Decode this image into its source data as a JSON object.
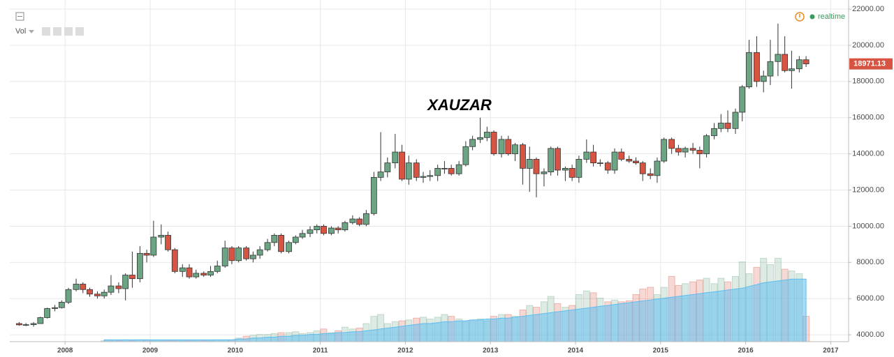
{
  "chart_data": {
    "type": "candlestick",
    "title": "XAUZAR",
    "ui": {
      "volume_label": "Vol",
      "status": "realtime"
    },
    "x": [
      2007.46,
      2007.54,
      2007.63,
      2007.71,
      2007.79,
      2007.88,
      2007.96,
      2008.04,
      2008.13,
      2008.21,
      2008.29,
      2008.38,
      2008.46,
      2008.54,
      2008.63,
      2008.71,
      2008.79,
      2008.88,
      2008.96,
      2009.04,
      2009.13,
      2009.21,
      2009.29,
      2009.38,
      2009.46,
      2009.54,
      2009.63,
      2009.71,
      2009.79,
      2009.88,
      2009.96,
      2010.04,
      2010.13,
      2010.21,
      2010.29,
      2010.38,
      2010.46,
      2010.54,
      2010.63,
      2010.71,
      2010.79,
      2010.88,
      2010.96,
      2011.04,
      2011.13,
      2011.21,
      2011.29,
      2011.38,
      2011.46,
      2011.54,
      2011.63,
      2011.71,
      2011.79,
      2011.88,
      2011.96,
      2012.04,
      2012.13,
      2012.21,
      2012.29,
      2012.38,
      2012.46,
      2012.54,
      2012.63,
      2012.71,
      2012.79,
      2012.88,
      2012.96,
      2013.04,
      2013.13,
      2013.21,
      2013.29,
      2013.38,
      2013.46,
      2013.54,
      2013.63,
      2013.71,
      2013.79,
      2013.88,
      2013.96,
      2014.04,
      2014.13,
      2014.21,
      2014.29,
      2014.38,
      2014.46,
      2014.54,
      2014.63,
      2014.71,
      2014.79,
      2014.88,
      2014.96,
      2015.04,
      2015.13,
      2015.21,
      2015.29,
      2015.38,
      2015.46,
      2015.54,
      2015.63,
      2015.71,
      2015.79,
      2015.88,
      2015.96,
      2016.04,
      2016.13,
      2016.21,
      2016.29,
      2016.38,
      2016.46,
      2016.54,
      2016.63,
      2016.71
    ],
    "ohlc": [
      [
        4620,
        4700,
        4500,
        4550
      ],
      [
        4550,
        4650,
        4480,
        4560
      ],
      [
        4560,
        4700,
        4450,
        4620
      ],
      [
        4620,
        5000,
        4600,
        4950
      ],
      [
        4950,
        5500,
        4900,
        5450
      ],
      [
        5450,
        5650,
        5300,
        5500
      ],
      [
        5500,
        5900,
        5450,
        5800
      ],
      [
        5800,
        6600,
        5700,
        6500
      ],
      [
        6500,
        7100,
        6400,
        6800
      ],
      [
        6800,
        6900,
        6300,
        6500
      ],
      [
        6500,
        6600,
        6100,
        6250
      ],
      [
        6250,
        6400,
        6000,
        6150
      ],
      [
        6150,
        6500,
        6000,
        6350
      ],
      [
        6350,
        7300,
        6200,
        6700
      ],
      [
        6700,
        6900,
        6300,
        6550
      ],
      [
        6550,
        7400,
        5900,
        7300
      ],
      [
        7300,
        8600,
        6600,
        7100
      ],
      [
        7100,
        8900,
        6900,
        8500
      ],
      [
        8500,
        8700,
        8000,
        8400
      ],
      [
        8400,
        10300,
        8300,
        9400
      ],
      [
        9400,
        10100,
        9000,
        9500
      ],
      [
        9500,
        9700,
        8600,
        8700
      ],
      [
        8700,
        8800,
        7400,
        7500
      ],
      [
        7500,
        7900,
        7200,
        7700
      ],
      [
        7700,
        7900,
        7100,
        7200
      ],
      [
        7200,
        7600,
        7100,
        7400
      ],
      [
        7400,
        7500,
        7200,
        7300
      ],
      [
        7300,
        7800,
        7200,
        7500
      ],
      [
        7500,
        8100,
        7400,
        7800
      ],
      [
        7800,
        9200,
        7700,
        8800
      ],
      [
        8800,
        8900,
        7900,
        8100
      ],
      [
        8100,
        8900,
        8000,
        8800
      ],
      [
        8800,
        8900,
        8100,
        8200
      ],
      [
        8200,
        8600,
        8000,
        8400
      ],
      [
        8400,
        8900,
        8200,
        8700
      ],
      [
        8700,
        9300,
        8600,
        9100
      ],
      [
        9100,
        9600,
        8900,
        9500
      ],
      [
        9500,
        9600,
        8500,
        8600
      ],
      [
        8600,
        9200,
        8500,
        9100
      ],
      [
        9100,
        9500,
        9000,
        9400
      ],
      [
        9400,
        9800,
        9300,
        9600
      ],
      [
        9600,
        10000,
        9400,
        9800
      ],
      [
        9800,
        10100,
        9600,
        10000
      ],
      [
        10000,
        10100,
        9500,
        9600
      ],
      [
        9600,
        10000,
        9500,
        9900
      ],
      [
        9900,
        10000,
        9600,
        9800
      ],
      [
        9800,
        10300,
        9700,
        10200
      ],
      [
        10200,
        10600,
        10100,
        10400
      ],
      [
        10400,
        10500,
        10000,
        10100
      ],
      [
        10100,
        10900,
        10000,
        10700
      ],
      [
        10700,
        13000,
        10600,
        12700
      ],
      [
        12700,
        15200,
        12500,
        13000
      ],
      [
        13000,
        13800,
        12700,
        13500
      ],
      [
        13500,
        15100,
        13200,
        14100
      ],
      [
        14100,
        14500,
        12500,
        12600
      ],
      [
        12600,
        13900,
        12300,
        13500
      ],
      [
        13500,
        13700,
        12500,
        12700
      ],
      [
        12700,
        13000,
        12400,
        12750
      ],
      [
        12750,
        13100,
        12500,
        12800
      ],
      [
        12800,
        13400,
        12500,
        13200
      ],
      [
        13200,
        13600,
        12900,
        13200
      ],
      [
        13200,
        13400,
        12800,
        12900
      ],
      [
        12900,
        13600,
        12800,
        13400
      ],
      [
        13400,
        14700,
        13300,
        14400
      ],
      [
        14400,
        15000,
        14200,
        14800
      ],
      [
        14800,
        16000,
        14600,
        14900
      ],
      [
        14900,
        15500,
        14700,
        15200
      ],
      [
        15200,
        15300,
        13900,
        14000
      ],
      [
        14000,
        15000,
        13800,
        14800
      ],
      [
        14800,
        15000,
        13900,
        14000
      ],
      [
        14000,
        14600,
        13600,
        14500
      ],
      [
        14500,
        14600,
        12300,
        13200
      ],
      [
        13200,
        14400,
        11900,
        13700
      ],
      [
        13700,
        13800,
        11600,
        12900
      ],
      [
        12900,
        13200,
        12200,
        13000
      ],
      [
        13000,
        14400,
        12800,
        14300
      ],
      [
        14300,
        14400,
        12800,
        13100
      ],
      [
        13100,
        13300,
        12500,
        13200
      ],
      [
        13200,
        13400,
        12500,
        12700
      ],
      [
        12700,
        13900,
        12400,
        13700
      ],
      [
        13700,
        14800,
        13500,
        14100
      ],
      [
        14100,
        14500,
        13300,
        13500
      ],
      [
        13500,
        13700,
        13300,
        13500
      ],
      [
        13500,
        13600,
        12900,
        13100
      ],
      [
        13100,
        14300,
        12900,
        14100
      ],
      [
        14100,
        14300,
        13600,
        13700
      ],
      [
        13700,
        13900,
        13500,
        13600
      ],
      [
        13600,
        13800,
        13400,
        13500
      ],
      [
        13500,
        13600,
        12500,
        12900
      ],
      [
        12900,
        13200,
        12600,
        12800
      ],
      [
        12800,
        13800,
        12400,
        13600
      ],
      [
        13600,
        14900,
        13500,
        14800
      ],
      [
        14800,
        14900,
        14000,
        14300
      ],
      [
        14300,
        14500,
        13900,
        14100
      ],
      [
        14100,
        14400,
        13800,
        14300
      ],
      [
        14300,
        14600,
        14000,
        14200
      ],
      [
        14200,
        14400,
        13200,
        14000
      ],
      [
        14000,
        15100,
        13800,
        15000
      ],
      [
        15000,
        15700,
        14800,
        15400
      ],
      [
        15400,
        16200,
        15200,
        15700
      ],
      [
        15700,
        16400,
        15200,
        15400
      ],
      [
        15400,
        16500,
        15100,
        16300
      ],
      [
        16300,
        17800,
        15800,
        17700
      ],
      [
        17700,
        20300,
        17600,
        19600
      ],
      [
        19600,
        20500,
        17700,
        18000
      ],
      [
        18000,
        18600,
        17400,
        18300
      ],
      [
        18300,
        20300,
        17800,
        19100
      ],
      [
        19100,
        21200,
        18300,
        19500
      ],
      [
        19500,
        20500,
        18500,
        18600
      ],
      [
        18600,
        19700,
        17600,
        18700
      ],
      [
        18700,
        19400,
        18500,
        19200
      ],
      [
        19200,
        19400,
        18800,
        18971.13
      ]
    ],
    "volume": [
      null,
      null,
      null,
      null,
      null,
      null,
      null,
      null,
      null,
      null,
      null,
      null,
      1,
      1,
      1,
      2,
      1,
      2,
      2,
      1,
      1,
      1,
      1,
      1,
      1,
      1,
      1,
      1,
      2,
      2,
      2,
      4,
      6,
      7,
      8,
      8,
      9,
      10,
      10,
      11,
      9,
      10,
      12,
      14,
      10,
      12,
      16,
      14,
      15,
      20,
      28,
      30,
      20,
      22,
      23,
      24,
      26,
      27,
      25,
      27,
      30,
      28,
      25,
      22,
      24,
      25,
      23,
      28,
      30,
      30,
      28,
      35,
      40,
      38,
      44,
      50,
      42,
      38,
      40,
      52,
      56,
      54,
      48,
      44,
      46,
      44,
      45,
      52,
      58,
      60,
      52,
      60,
      72,
      62,
      64,
      66,
      68,
      70,
      64,
      70,
      66,
      72,
      88,
      75,
      82,
      92,
      85,
      92,
      80,
      78,
      75,
      28
    ],
    "volume_ma": [
      null,
      null,
      null,
      null,
      null,
      null,
      null,
      null,
      null,
      null,
      null,
      null,
      2,
      2,
      2,
      2,
      2,
      2,
      2,
      2,
      2,
      2,
      2,
      2,
      2,
      2,
      2,
      2,
      2,
      2,
      2,
      3,
      3,
      4,
      4,
      5,
      5,
      6,
      6,
      7,
      7,
      8,
      8,
      9,
      9,
      10,
      10,
      11,
      11,
      12,
      13,
      14,
      15,
      16,
      17,
      18,
      19,
      20,
      20,
      21,
      22,
      22,
      23,
      23,
      24,
      24,
      25,
      25,
      26,
      26,
      27,
      28,
      29,
      30,
      31,
      32,
      33,
      34,
      35,
      36,
      37,
      38,
      39,
      40,
      41,
      42,
      43,
      44,
      45,
      46,
      47,
      48,
      49,
      50,
      51,
      52,
      53,
      54,
      55,
      56,
      57,
      58,
      59,
      61,
      63,
      65,
      66,
      67,
      68,
      69,
      69,
      69
    ],
    "up_color": "#6ba583",
    "down_color": "#d75442",
    "volume_ma_color": "#5fbdf0",
    "xlim": [
      2007.35,
      2017.21
    ],
    "xticks": [
      2008,
      2009,
      2010,
      2011,
      2012,
      2013,
      2014,
      2015,
      2016,
      2017
    ],
    "ylim": [
      3620,
      22310
    ],
    "yticks": [
      {
        "value": 4000,
        "label": "4000.00"
      },
      {
        "value": 6000,
        "label": "6000.00"
      },
      {
        "value": 8000,
        "label": "8000.00"
      },
      {
        "value": 10000,
        "label": "10000.00"
      },
      {
        "value": 12000,
        "label": "12000.00"
      },
      {
        "value": 14000,
        "label": "14000.00"
      },
      {
        "value": 16000,
        "label": "16000.00"
      },
      {
        "value": 18000,
        "label": "18000.00"
      },
      {
        "value": 20000,
        "label": "20000.00"
      },
      {
        "value": 22000,
        "label": "22000.00"
      }
    ],
    "volume_lim": [
      0,
      100
    ],
    "grid": true
  }
}
